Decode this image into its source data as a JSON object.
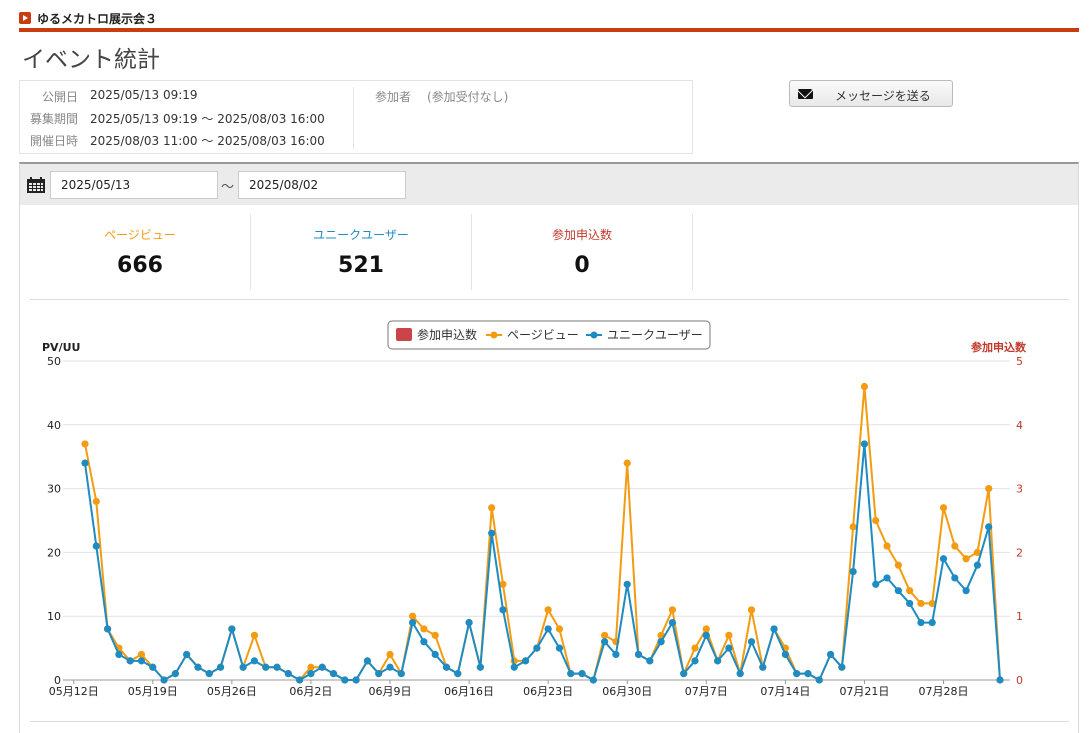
{
  "header": {
    "site_name": "ゆるメカトロ展示会３",
    "page_title": "イベント統計"
  },
  "info": {
    "published_label": "公開日",
    "published_value": "2025/05/13 09:19",
    "recruit_label": "募集期間",
    "recruit_value": "2025/05/13 09:19 〜 2025/08/03 16:00",
    "event_label": "開催日時",
    "event_value": "2025/08/03 11:00 〜 2025/08/03 16:00",
    "participants_label": "参加者",
    "participants_value": "(参加受付なし)"
  },
  "actions": {
    "send_message_label": "メッセージを送る"
  },
  "date_range": {
    "start": "2025/05/13",
    "separator": "〜",
    "end": "2025/08/02"
  },
  "stats": [
    {
      "label": "ページビュー",
      "value": "666",
      "color": "#f39c12"
    },
    {
      "label": "ユニークユーザー",
      "value": "521",
      "color": "#1e8bc3"
    },
    {
      "label": "参加申込数",
      "value": "0",
      "color": "#c0392b"
    }
  ],
  "chart_data": {
    "type": "line",
    "title": "",
    "left_axis_label": "PV/UU",
    "right_axis_label": "参加申込数",
    "left_ylim": [
      0,
      50
    ],
    "left_ticks": [
      "0",
      "10",
      "20",
      "30",
      "40",
      "50"
    ],
    "right_ylim": [
      0,
      5
    ],
    "right_ticks": [
      "0",
      "1",
      "2",
      "3",
      "4",
      "5"
    ],
    "x_tick_labels": [
      "05月12日",
      "05月19日",
      "05月26日",
      "06月2日",
      "06月9日",
      "06月16日",
      "06月23日",
      "06月30日",
      "07月7日",
      "07月14日",
      "07月21日",
      "07月28日"
    ],
    "x_start": "2025/05/13",
    "x_end": "2025/08/03",
    "grid": true,
    "legend_position": "top-center",
    "series": [
      {
        "name": "参加申込数",
        "type": "bar",
        "axis": "right",
        "color": "#c9454a",
        "values": [
          0,
          0,
          0,
          0,
          0,
          0,
          0,
          0,
          0,
          0,
          0,
          0,
          0,
          0,
          0,
          0,
          0,
          0,
          0,
          0,
          0,
          0,
          0,
          0,
          0,
          0,
          0,
          0,
          0,
          0,
          0,
          0,
          0,
          0,
          0,
          0,
          0,
          0,
          0,
          0,
          0,
          0,
          0,
          0,
          0,
          0,
          0,
          0,
          0,
          0,
          0,
          0,
          0,
          0,
          0,
          0,
          0,
          0,
          0,
          0,
          0,
          0,
          0,
          0,
          0,
          0,
          0,
          0,
          0,
          0,
          0,
          0,
          0,
          0,
          0,
          0,
          0,
          0,
          0,
          0,
          0,
          0,
          0,
          0
        ]
      },
      {
        "name": "ページビュー",
        "type": "line",
        "axis": "left",
        "color": "#f39c12",
        "values": [
          37,
          28,
          8,
          5,
          3,
          4,
          2,
          0,
          1,
          4,
          2,
          1,
          2,
          8,
          2,
          7,
          2,
          2,
          1,
          0,
          2,
          2,
          1,
          0,
          0,
          3,
          1,
          4,
          1,
          10,
          8,
          7,
          2,
          1,
          9,
          2,
          27,
          15,
          3,
          3,
          5,
          11,
          8,
          1,
          1,
          0,
          7,
          6,
          34,
          4,
          3,
          7,
          11,
          1,
          5,
          8,
          3,
          7,
          1,
          11,
          2,
          8,
          5,
          1,
          1,
          0,
          4,
          2,
          24,
          46,
          25,
          21,
          18,
          14,
          12,
          12,
          27,
          21,
          19,
          20,
          30,
          0
        ]
      },
      {
        "name": "ユニークユーザー",
        "type": "line",
        "axis": "left",
        "color": "#1e8bc3",
        "values": [
          34,
          21,
          8,
          4,
          3,
          3,
          2,
          0,
          1,
          4,
          2,
          1,
          2,
          8,
          2,
          3,
          2,
          2,
          1,
          0,
          1,
          2,
          1,
          0,
          0,
          3,
          1,
          2,
          1,
          9,
          6,
          4,
          2,
          1,
          9,
          2,
          23,
          11,
          2,
          3,
          5,
          8,
          5,
          1,
          1,
          0,
          6,
          4,
          15,
          4,
          3,
          6,
          9,
          1,
          3,
          7,
          3,
          5,
          1,
          6,
          2,
          8,
          4,
          1,
          1,
          0,
          4,
          2,
          17,
          37,
          15,
          16,
          14,
          12,
          9,
          9,
          19,
          16,
          14,
          18,
          24,
          0
        ]
      }
    ]
  }
}
